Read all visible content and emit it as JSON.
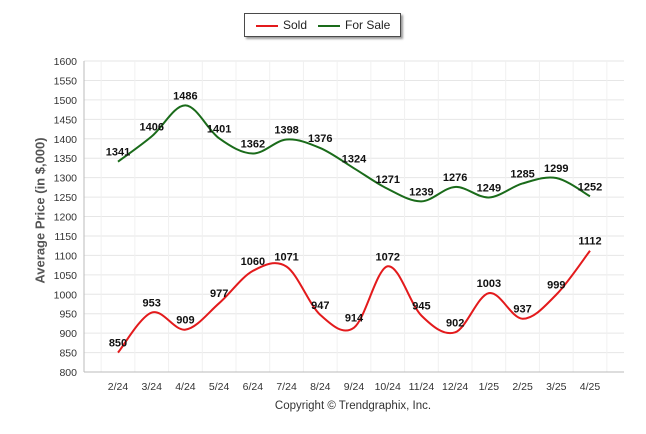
{
  "legend": [
    {
      "label": "Sold",
      "color": "#e31a1c"
    },
    {
      "label": "For Sale",
      "color": "#1a6b1a"
    }
  ],
  "footer": "Copyright © Trendgraphix, Inc.",
  "chart_data": {
    "type": "line",
    "categories": [
      "2/24",
      "3/24",
      "4/24",
      "5/24",
      "6/24",
      "7/24",
      "8/24",
      "9/24",
      "10/24",
      "11/24",
      "12/24",
      "1/25",
      "2/25",
      "3/25",
      "4/25"
    ],
    "series": [
      {
        "name": "Sold",
        "color": "#e31a1c",
        "values": [
          850,
          953,
          909,
          977,
          1060,
          1071,
          947,
          914,
          1072,
          945,
          902,
          1003,
          937,
          999,
          1112
        ]
      },
      {
        "name": "For Sale",
        "color": "#1a6b1a",
        "values": [
          1341,
          1406,
          1486,
          1401,
          1362,
          1398,
          1376,
          1324,
          1271,
          1239,
          1276,
          1249,
          1285,
          1299,
          1252
        ]
      }
    ],
    "title": "",
    "xlabel": "",
    "ylabel": "Average Price (in $,000)",
    "ylim": [
      800,
      1600
    ],
    "yticks": [
      800,
      850,
      900,
      950,
      1000,
      1050,
      1100,
      1150,
      1200,
      1250,
      1300,
      1350,
      1400,
      1450,
      1500,
      1550,
      1600
    ],
    "grid": true,
    "legend_position": "top-center"
  }
}
